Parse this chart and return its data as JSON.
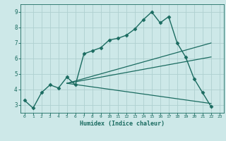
{
  "xlabel": "Humidex (Indice chaleur)",
  "bg_color": "#cde8e8",
  "grid_color": "#afd0d0",
  "line_color": "#1a6b60",
  "xlim": [
    -0.5,
    23.5
  ],
  "ylim": [
    2.5,
    9.5
  ],
  "xticks": [
    0,
    1,
    2,
    3,
    4,
    5,
    6,
    7,
    8,
    9,
    10,
    11,
    12,
    13,
    14,
    15,
    16,
    17,
    18,
    19,
    20,
    21,
    22,
    23
  ],
  "yticks": [
    3,
    4,
    5,
    6,
    7,
    8,
    9
  ],
  "series": [
    {
      "x": [
        0,
        1,
        2,
        3,
        4,
        5,
        6,
        7,
        8,
        9,
        10,
        11,
        12,
        13,
        14,
        15,
        16,
        17,
        18,
        19,
        20,
        21,
        22
      ],
      "y": [
        3.3,
        2.8,
        3.8,
        4.3,
        4.1,
        4.8,
        4.3,
        6.3,
        6.5,
        6.7,
        7.2,
        7.3,
        7.5,
        7.9,
        8.5,
        9.0,
        8.3,
        8.7,
        7.0,
        6.1,
        4.7,
        3.8,
        2.9
      ],
      "marker": "D",
      "markersize": 2.5,
      "linewidth": 1.0
    },
    {
      "x": [
        5,
        22
      ],
      "y": [
        4.4,
        6.1
      ],
      "linewidth": 0.9
    },
    {
      "x": [
        5,
        22
      ],
      "y": [
        4.4,
        3.1
      ],
      "linewidth": 0.9
    },
    {
      "x": [
        5,
        22
      ],
      "y": [
        4.4,
        7.0
      ],
      "linewidth": 0.9
    }
  ]
}
